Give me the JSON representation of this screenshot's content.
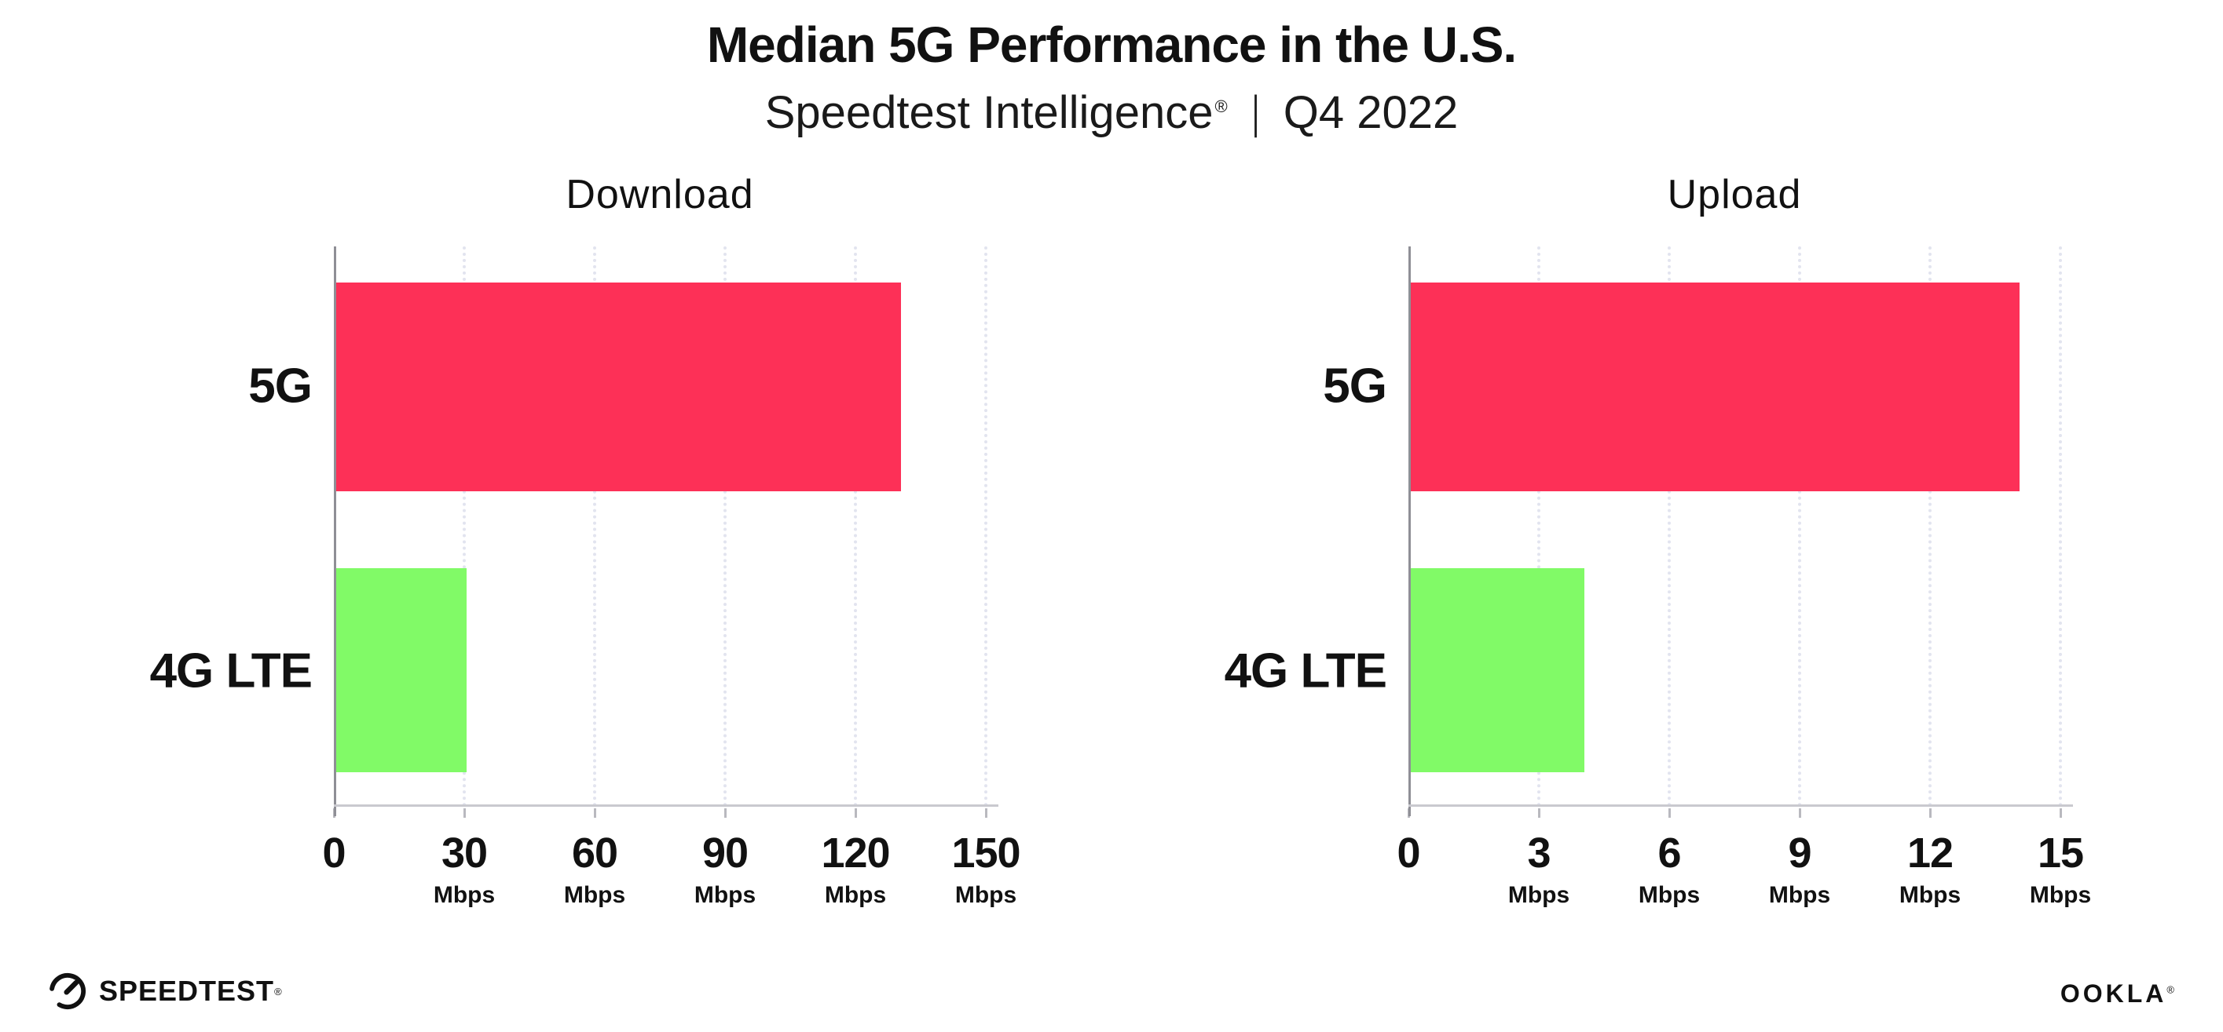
{
  "header": {
    "title": "Median 5G Performance in the U.S.",
    "subtitle_brand": "Speedtest Intelligence",
    "subtitle_registered": "®",
    "subtitle_separator": "|",
    "subtitle_period": "Q4 2022"
  },
  "colors": {
    "bar_5g": "#fd3057",
    "bar_4g_lte": "#81fa67",
    "gridline": "#e2e4ef",
    "y_axis": "#8f8f96",
    "x_axis": "#c9c9cf",
    "text": "#111111"
  },
  "chart_data": [
    {
      "type": "bar",
      "orientation": "horizontal",
      "title": "Download",
      "categories": [
        "5G",
        "4G LTE"
      ],
      "values": [
        130,
        30
      ],
      "unit": "Mbps",
      "xlim": [
        0,
        150
      ],
      "xticks": [
        0,
        30,
        60,
        90,
        120,
        150
      ],
      "tick_unit_label": "Mbps",
      "grid": "vertical-dotted",
      "legend": "none",
      "series_colors": [
        "#fd3057",
        "#81fa67"
      ]
    },
    {
      "type": "bar",
      "orientation": "horizontal",
      "title": "Upload",
      "categories": [
        "5G",
        "4G LTE"
      ],
      "values": [
        14,
        4
      ],
      "unit": "Mbps",
      "xlim": [
        0,
        15
      ],
      "xticks": [
        0,
        3,
        6,
        9,
        12,
        15
      ],
      "tick_unit_label": "Mbps",
      "grid": "vertical-dotted",
      "legend": "none",
      "series_colors": [
        "#fd3057",
        "#81fa67"
      ]
    }
  ],
  "footer": {
    "speedtest_label": "SPEEDTEST",
    "speedtest_mark": "®",
    "ookla_label": "OOKLA",
    "ookla_mark": "®"
  }
}
